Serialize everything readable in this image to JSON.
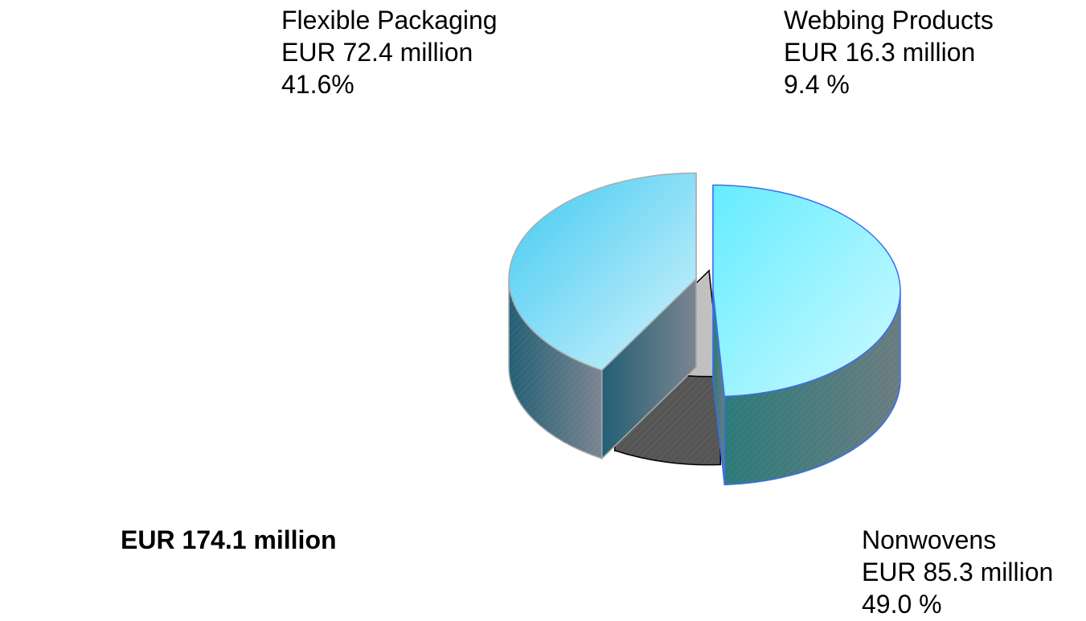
{
  "chart_data": {
    "type": "pie",
    "style": "3d exploded",
    "total_label": "EUR 174.1 million",
    "slices": [
      {
        "name": "Flexible Packaging",
        "amount_label": "EUR 72.4  million",
        "percent_label": "41.6%",
        "value": 72.4,
        "percent": 41.6,
        "color": "#6ad9f6"
      },
      {
        "name": "Webbing Products",
        "amount_label": "EUR 16.3  million",
        "percent_label": "9.4 %",
        "value": 16.3,
        "percent": 9.4,
        "color": "#c0c0c0"
      },
      {
        "name": "Nonwovens",
        "amount_label": "EUR 85.3 million",
        "percent_label": "49.0 %",
        "value": 85.3,
        "percent": 49.0,
        "color": "#8ff3ff"
      }
    ]
  }
}
